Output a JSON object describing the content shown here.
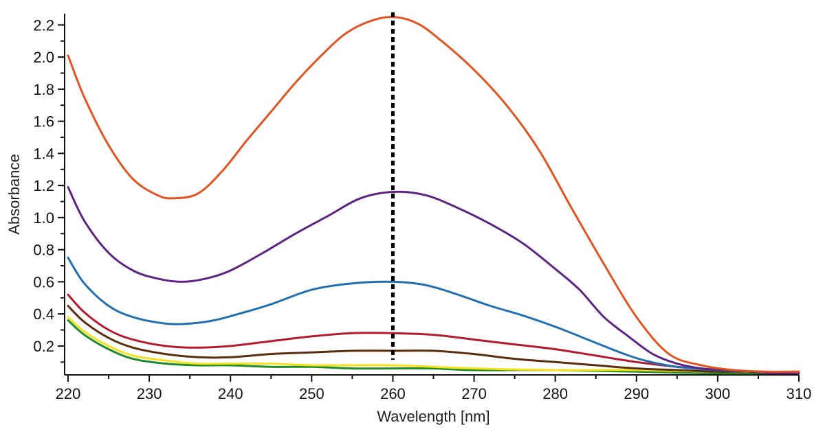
{
  "chart_data": {
    "type": "line",
    "xlabel": "Wavelength [nm]",
    "ylabel": "Absorbance",
    "xlim": [
      220,
      310
    ],
    "ylim": [
      0.02,
      2.27
    ],
    "xticks": [
      220,
      230,
      240,
      250,
      260,
      270,
      280,
      290,
      300,
      310
    ],
    "yticks": [
      0.2,
      0.4,
      0.6,
      0.8,
      1.0,
      1.2,
      1.4,
      1.6,
      1.8,
      2.0,
      2.2
    ],
    "ytick_labels": [
      "0.2",
      "0.4",
      "0.6",
      "0.8",
      "1.0",
      "1.2",
      "1.4",
      "1.6",
      "1.8",
      "2.0",
      "2.2"
    ],
    "grid": false,
    "vertical_marker": {
      "x": 260,
      "style": "dotted",
      "color": "#000000"
    },
    "series": [
      {
        "color": "#e2531f",
        "x": [
          220,
          222,
          225,
          228,
          231,
          233,
          236,
          239,
          242,
          245,
          248,
          251,
          254,
          257,
          260,
          263,
          266,
          270,
          274,
          278,
          282,
          286,
          290,
          294,
          298,
          302,
          306,
          310
        ],
        "values": [
          2.01,
          1.75,
          1.45,
          1.24,
          1.14,
          1.12,
          1.15,
          1.29,
          1.48,
          1.66,
          1.84,
          2.0,
          2.14,
          2.22,
          2.25,
          2.21,
          2.1,
          1.92,
          1.7,
          1.42,
          1.06,
          0.71,
          0.38,
          0.15,
          0.08,
          0.05,
          0.04,
          0.04
        ]
      },
      {
        "color": "#5c2384",
        "x": [
          220,
          222,
          225,
          228,
          231,
          234,
          237,
          240,
          244,
          248,
          252,
          256,
          260,
          264,
          268,
          272,
          276,
          280,
          283,
          286,
          289,
          292,
          295,
          298,
          301,
          304,
          307,
          310
        ],
        "values": [
          1.19,
          0.98,
          0.78,
          0.67,
          0.62,
          0.6,
          0.62,
          0.67,
          0.78,
          0.9,
          1.01,
          1.12,
          1.16,
          1.14,
          1.06,
          0.96,
          0.84,
          0.68,
          0.55,
          0.38,
          0.26,
          0.15,
          0.09,
          0.06,
          0.05,
          0.04,
          0.03,
          0.03
        ]
      },
      {
        "color": "#1f6fb2",
        "x": [
          220,
          222,
          225,
          228,
          232,
          235,
          238,
          241,
          245,
          250,
          255,
          260,
          264,
          268,
          272,
          276,
          280,
          284,
          288,
          291,
          295,
          300,
          305,
          310
        ],
        "values": [
          0.75,
          0.59,
          0.45,
          0.38,
          0.34,
          0.34,
          0.36,
          0.4,
          0.46,
          0.55,
          0.59,
          0.6,
          0.58,
          0.52,
          0.45,
          0.39,
          0.32,
          0.24,
          0.16,
          0.11,
          0.07,
          0.05,
          0.04,
          0.03
        ]
      },
      {
        "color": "#b5192e",
        "x": [
          220,
          222,
          225,
          228,
          232,
          236,
          240,
          245,
          250,
          255,
          260,
          265,
          270,
          275,
          280,
          285,
          290,
          295,
          300,
          305,
          310
        ],
        "values": [
          0.52,
          0.41,
          0.3,
          0.24,
          0.2,
          0.19,
          0.2,
          0.23,
          0.26,
          0.28,
          0.28,
          0.27,
          0.24,
          0.21,
          0.18,
          0.14,
          0.1,
          0.07,
          0.05,
          0.04,
          0.04
        ]
      },
      {
        "color": "#5a2e0c",
        "x": [
          220,
          222,
          225,
          228,
          232,
          236,
          240,
          245,
          250,
          255,
          260,
          265,
          270,
          275,
          280,
          285,
          290,
          295,
          300,
          305,
          310
        ],
        "values": [
          0.45,
          0.35,
          0.25,
          0.19,
          0.15,
          0.13,
          0.13,
          0.15,
          0.16,
          0.17,
          0.17,
          0.17,
          0.15,
          0.12,
          0.1,
          0.08,
          0.06,
          0.05,
          0.04,
          0.04,
          0.03
        ]
      },
      {
        "color": "#f5e21a",
        "x": [
          220,
          222,
          225,
          228,
          232,
          236,
          240,
          245,
          250,
          255,
          260,
          265,
          270,
          280,
          290,
          300,
          310
        ],
        "values": [
          0.38,
          0.29,
          0.2,
          0.14,
          0.11,
          0.09,
          0.09,
          0.09,
          0.08,
          0.08,
          0.08,
          0.07,
          0.06,
          0.05,
          0.05,
          0.04,
          0.04
        ]
      },
      {
        "color": "#1e8c2a",
        "x": [
          220,
          222,
          225,
          228,
          232,
          236,
          240,
          245,
          250,
          255,
          260,
          265,
          270,
          280,
          290,
          300,
          310
        ],
        "values": [
          0.36,
          0.27,
          0.18,
          0.12,
          0.09,
          0.08,
          0.08,
          0.07,
          0.07,
          0.06,
          0.06,
          0.06,
          0.05,
          0.05,
          0.04,
          0.03,
          0.03
        ]
      }
    ]
  }
}
